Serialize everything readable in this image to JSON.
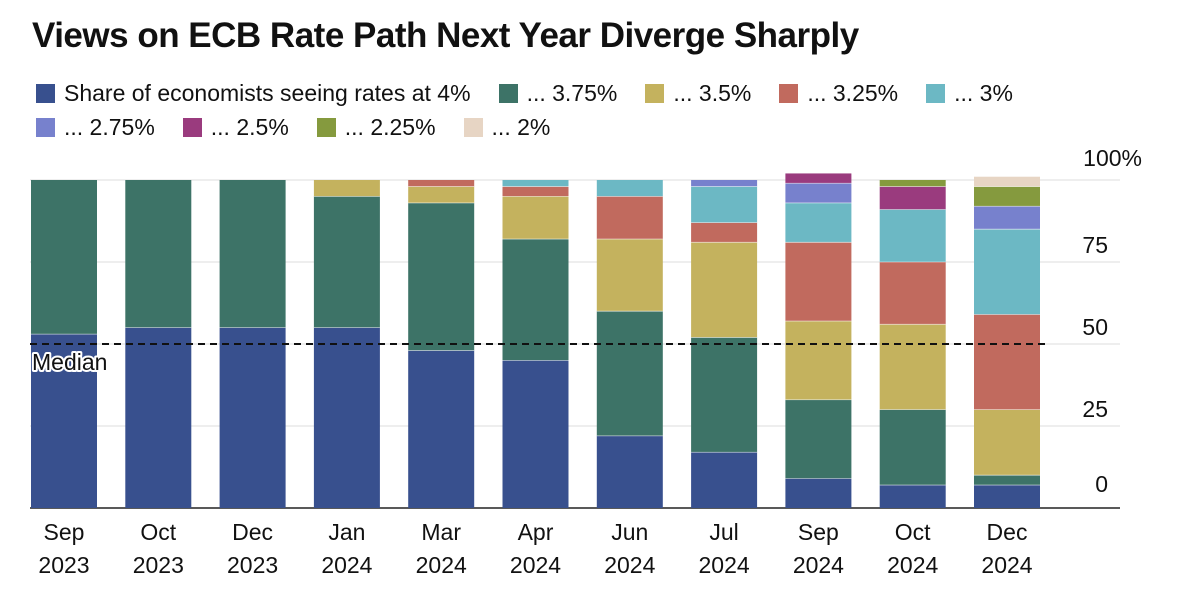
{
  "chart_data": {
    "type": "bar",
    "stacked": true,
    "title": "Views on ECB Rate Path Next Year Diverge Sharply",
    "xlabel": "",
    "ylabel": "",
    "ylim": [
      0,
      100
    ],
    "y_ticks": [
      "100%",
      "75",
      "50",
      "25",
      "0"
    ],
    "y_tick_values": [
      100,
      75,
      50,
      25,
      0
    ],
    "grid": true,
    "legend_position": "top",
    "categories": [
      "Sep|2023",
      "Oct|2023",
      "Dec|2023",
      "Jan|2024",
      "Mar|2024",
      "Apr|2024",
      "Jun|2024",
      "Jul|2024",
      "Sep|2024",
      "Oct|2024",
      "Dec|2024"
    ],
    "series": [
      {
        "name": "Share of economists seeing rates at 4%",
        "color": "#38508e",
        "values": [
          53,
          55,
          55,
          55,
          48,
          45,
          22,
          17,
          9,
          7,
          7
        ]
      },
      {
        "name": "... 3.75%",
        "color": "#3d7367",
        "values": [
          47,
          45,
          45,
          40,
          45,
          37,
          38,
          35,
          24,
          23,
          3
        ]
      },
      {
        "name": "... 3.5%",
        "color": "#c4b25e",
        "values": [
          0,
          0,
          0,
          5,
          5,
          13,
          22,
          29,
          24,
          26,
          20
        ]
      },
      {
        "name": "... 3.25%",
        "color": "#c16a5e",
        "values": [
          0,
          0,
          0,
          0,
          2,
          3,
          13,
          6,
          24,
          19,
          29
        ]
      },
      {
        "name": "... 3%",
        "color": "#6cb8c4",
        "values": [
          0,
          0,
          0,
          0,
          0,
          2,
          5,
          11,
          12,
          16,
          26
        ]
      },
      {
        "name": "... 2.75%",
        "color": "#7781cd",
        "values": [
          0,
          0,
          0,
          0,
          0,
          0,
          0,
          2,
          6,
          0,
          7
        ]
      },
      {
        "name": "... 2.5%",
        "color": "#9a3b7e",
        "values": [
          0,
          0,
          0,
          0,
          0,
          0,
          0,
          0,
          3,
          7,
          0
        ]
      },
      {
        "name": "... 2.25%",
        "color": "#859a3e",
        "values": [
          0,
          0,
          0,
          0,
          0,
          0,
          0,
          0,
          0,
          2,
          6
        ]
      },
      {
        "name": "... 2%",
        "color": "#e7d5c4",
        "values": [
          0,
          0,
          0,
          0,
          0,
          0,
          0,
          0,
          0,
          0,
          3
        ]
      }
    ],
    "annotations": [
      {
        "text": "Median",
        "value": 50
      }
    ]
  }
}
